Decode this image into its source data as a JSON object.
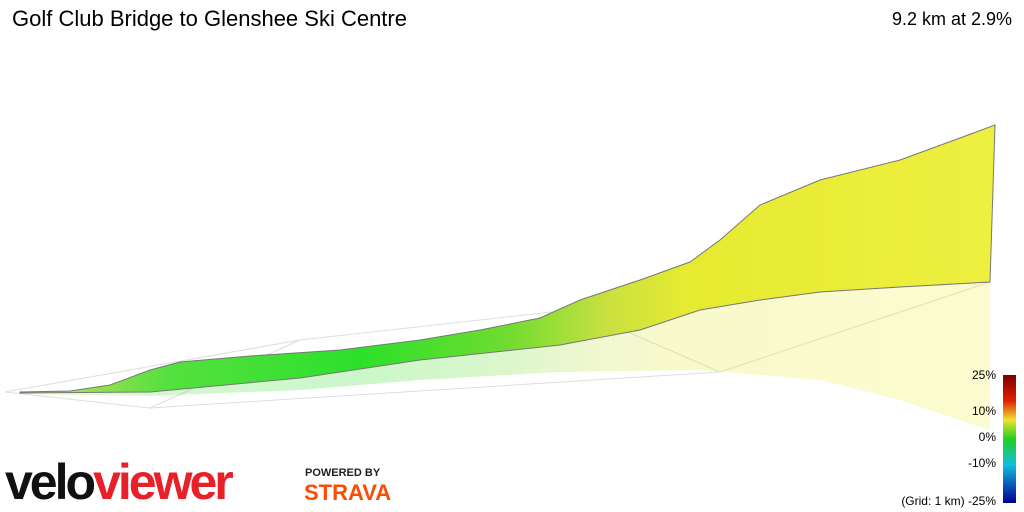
{
  "header": {
    "title": "Golf Club Bridge to Glenshee Ski Centre",
    "stats": "9.2 km at 2.9%"
  },
  "legend": {
    "labels": [
      "25%",
      "10%",
      "0%",
      "-10%"
    ],
    "grid_note": "(Grid: 1 km) -25%"
  },
  "branding": {
    "logo_velo": "velo",
    "logo_viewer": "viewer",
    "powered_by": "POWERED BY",
    "strava": "STRAVA"
  }
}
